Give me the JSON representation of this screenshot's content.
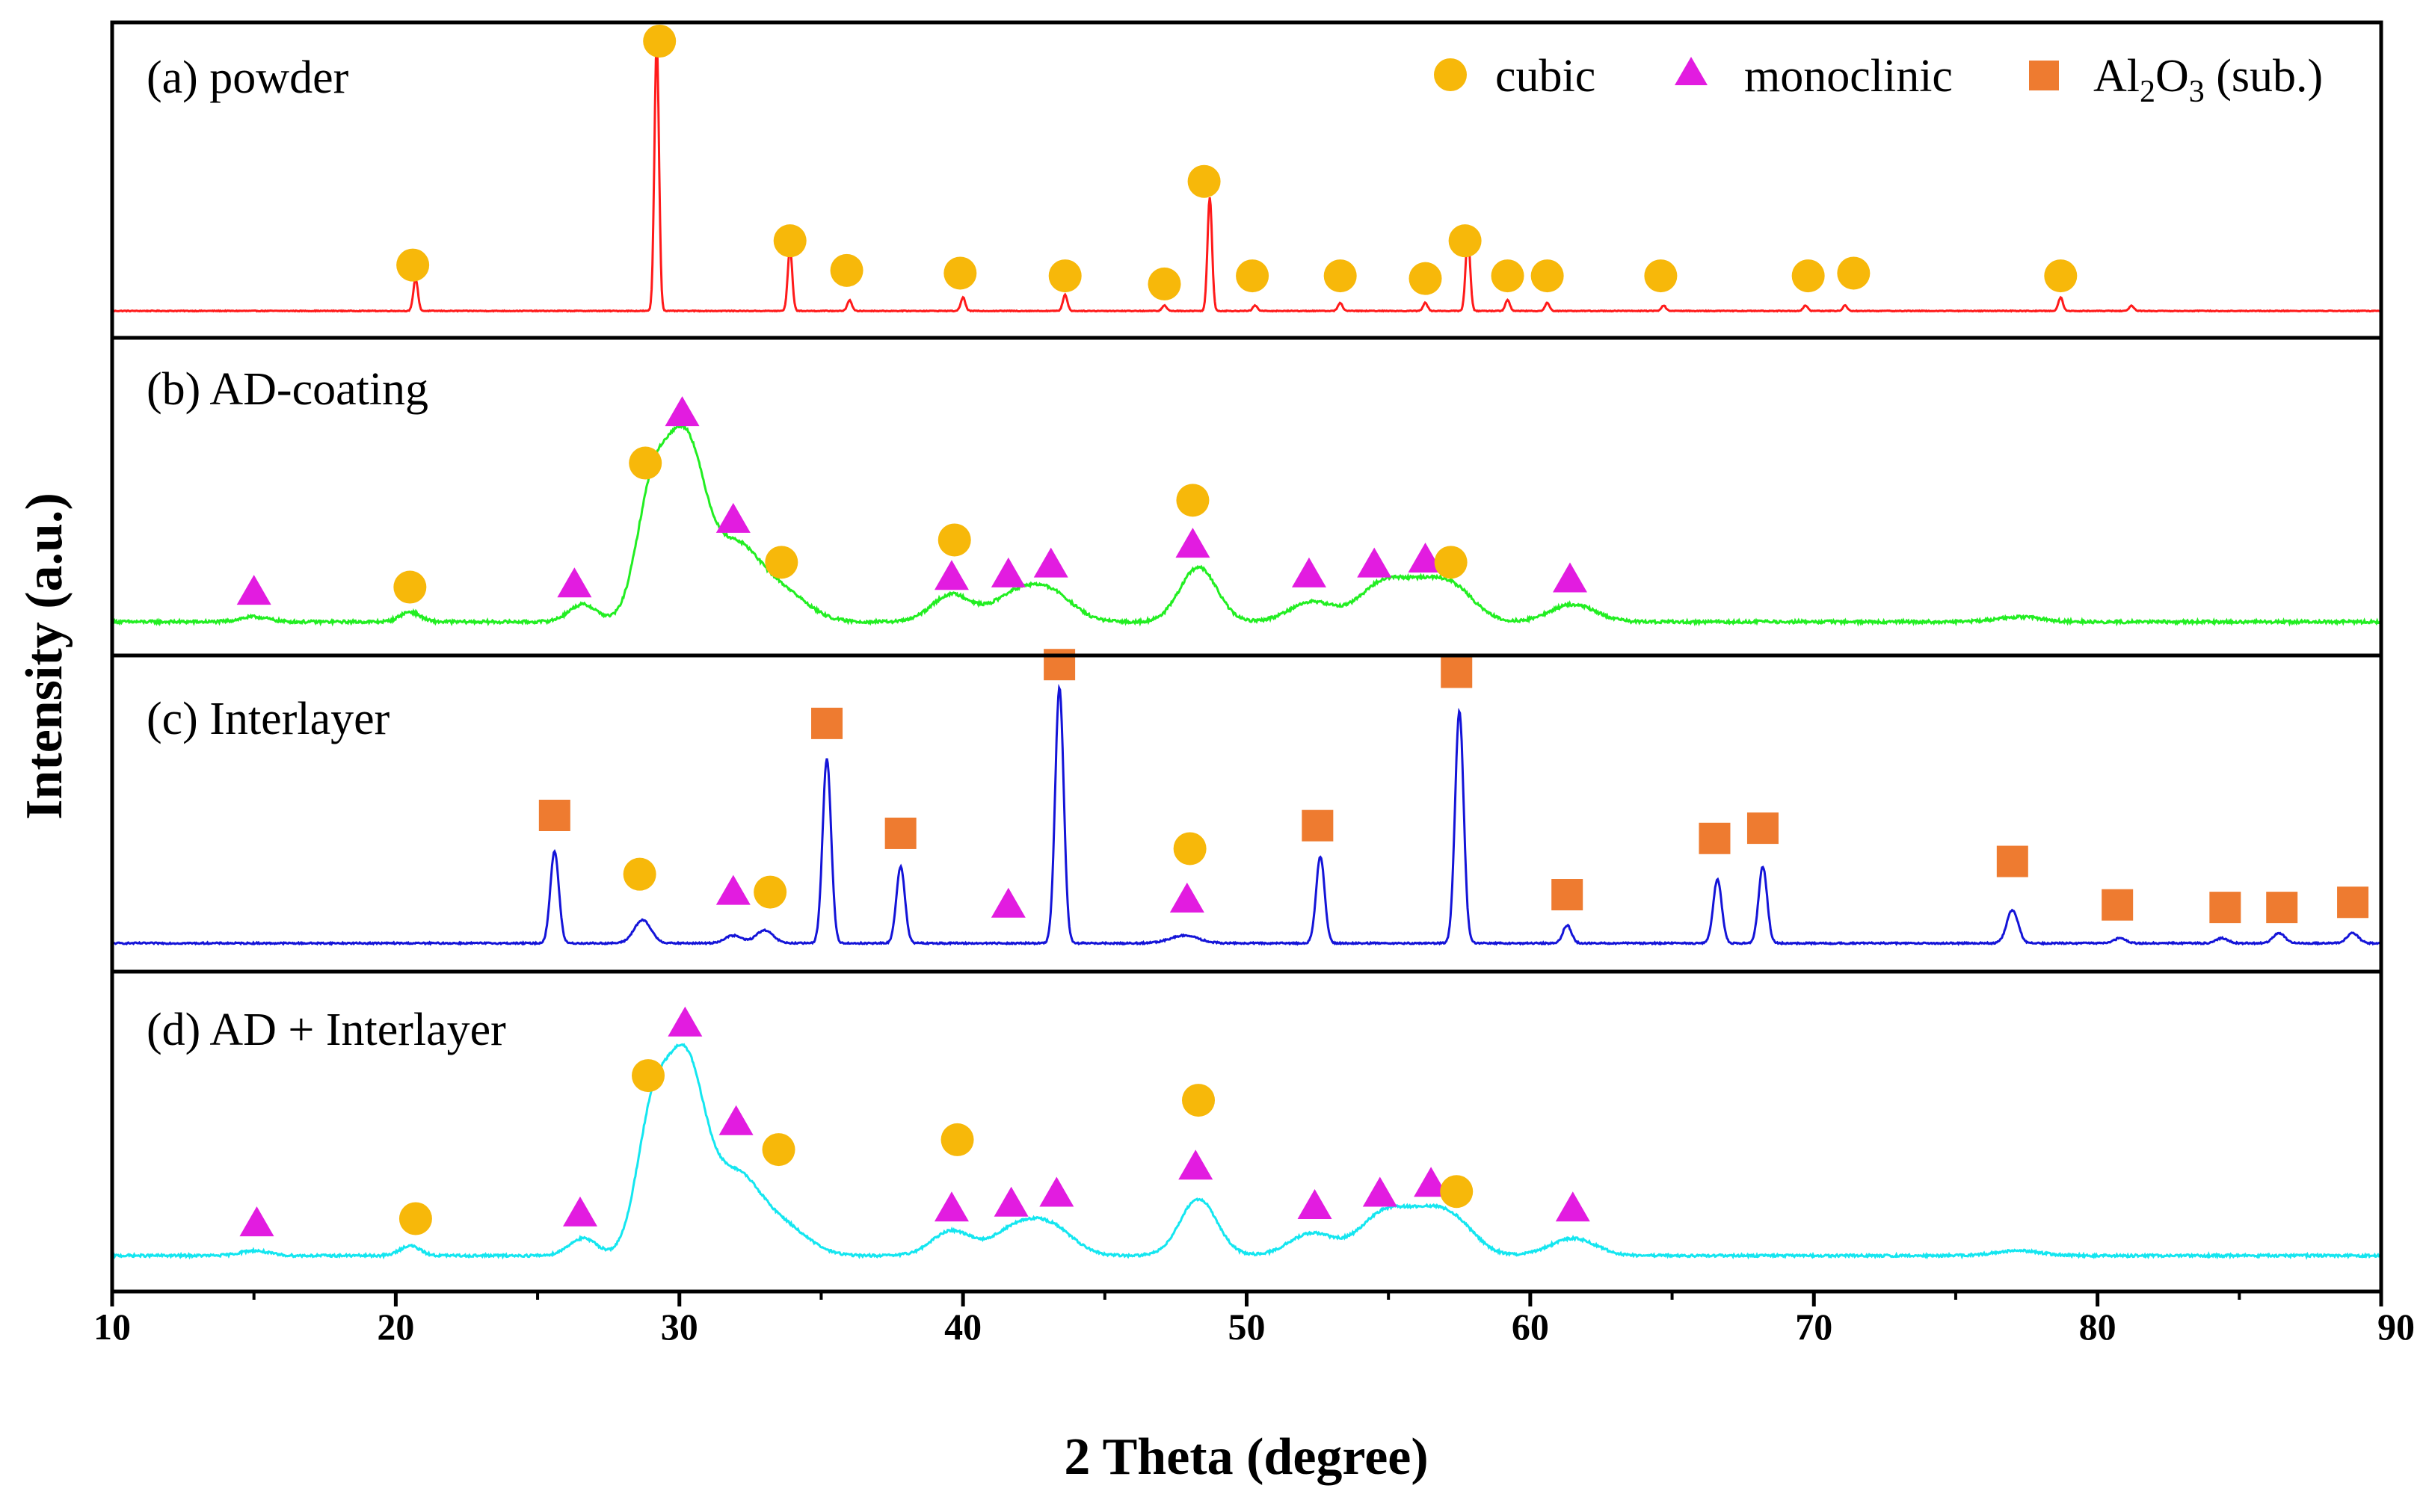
{
  "chart_data": {
    "type": "line",
    "xlabel": "2 Theta (degree)",
    "ylabel": "Intensity (a.u.)",
    "xlim": [
      10,
      90
    ],
    "xticks": [
      "10",
      "20",
      "30",
      "40",
      "50",
      "60",
      "70",
      "80",
      "90"
    ],
    "legend": {
      "placement": "top-right",
      "entries": [
        {
          "marker": "circle",
          "color": "#f7b80a",
          "label": "cubic"
        },
        {
          "marker": "triangle",
          "color": "#e21ce0",
          "label": "monoclinic"
        },
        {
          "marker": "square",
          "color": "#ee7b30",
          "label": "Al2O3 (sub.)",
          "label_parts": {
            "base1": "Al",
            "sub1": "2",
            "base2": "O",
            "sub2": "3",
            "rest": " (sub.)"
          }
        }
      ]
    },
    "marker_colors": {
      "cubic": "#f7b80a",
      "monoclinic": "#e21ce0",
      "al2o3": "#ee7b30"
    },
    "panels": [
      {
        "label": "(a) powder",
        "color": "#ff1a1a",
        "ymax": 1.0,
        "baseline": 0.02,
        "noise": 0.0015,
        "peaks": [
          [
            20.7,
            0.12,
            0.08
          ],
          [
            29.2,
            1.0,
            0.08
          ],
          [
            33.9,
            0.23,
            0.08
          ],
          [
            36.0,
            0.04,
            0.08
          ],
          [
            40.0,
            0.05,
            0.08
          ],
          [
            43.6,
            0.06,
            0.08
          ],
          [
            47.1,
            0.02,
            0.08
          ],
          [
            48.7,
            0.42,
            0.08
          ],
          [
            50.3,
            0.02,
            0.08
          ],
          [
            53.3,
            0.03,
            0.08
          ],
          [
            56.3,
            0.03,
            0.08
          ],
          [
            57.8,
            0.28,
            0.08
          ],
          [
            59.2,
            0.04,
            0.08
          ],
          [
            60.6,
            0.03,
            0.08
          ],
          [
            64.7,
            0.02,
            0.08
          ],
          [
            69.7,
            0.02,
            0.08
          ],
          [
            71.1,
            0.02,
            0.08
          ],
          [
            78.7,
            0.05,
            0.08
          ],
          [
            81.2,
            0.02,
            0.08
          ]
        ],
        "markers": [
          {
            "type": "cubic",
            "x": 20.6,
            "level": 0.17
          },
          {
            "type": "cubic",
            "x": 29.3,
            "level": 1.0
          },
          {
            "type": "cubic",
            "x": 33.9,
            "level": 0.26
          },
          {
            "type": "cubic",
            "x": 35.9,
            "level": 0.15
          },
          {
            "type": "cubic",
            "x": 39.9,
            "level": 0.14
          },
          {
            "type": "cubic",
            "x": 43.6,
            "level": 0.13
          },
          {
            "type": "cubic",
            "x": 47.1,
            "level": 0.1
          },
          {
            "type": "cubic",
            "x": 48.5,
            "level": 0.48
          },
          {
            "type": "cubic",
            "x": 50.2,
            "level": 0.13
          },
          {
            "type": "cubic",
            "x": 53.3,
            "level": 0.13
          },
          {
            "type": "cubic",
            "x": 56.3,
            "level": 0.12
          },
          {
            "type": "cubic",
            "x": 57.7,
            "level": 0.26
          },
          {
            "type": "cubic",
            "x": 59.2,
            "level": 0.13
          },
          {
            "type": "cubic",
            "x": 60.6,
            "level": 0.13
          },
          {
            "type": "cubic",
            "x": 64.6,
            "level": 0.13
          },
          {
            "type": "cubic",
            "x": 69.8,
            "level": 0.13
          },
          {
            "type": "cubic",
            "x": 71.4,
            "level": 0.14
          },
          {
            "type": "cubic",
            "x": 78.7,
            "level": 0.13
          }
        ]
      },
      {
        "label": "(b) AD-coating",
        "color": "#22ee22",
        "ymax": 1.0,
        "baseline": 0.03,
        "noise": 0.006,
        "peaks": [
          [
            15.0,
            0.02,
            0.5
          ],
          [
            20.5,
            0.04,
            0.35
          ],
          [
            26.6,
            0.07,
            0.5
          ],
          [
            29.0,
            0.45,
            0.55
          ],
          [
            30.2,
            0.72,
            0.7
          ],
          [
            32.0,
            0.28,
            0.8
          ],
          [
            33.6,
            0.12,
            0.9
          ],
          [
            39.6,
            0.11,
            0.7
          ],
          [
            41.8,
            0.1,
            0.8
          ],
          [
            43.1,
            0.11,
            0.8
          ],
          [
            48.3,
            0.22,
            0.65
          ],
          [
            52.3,
            0.08,
            0.8
          ],
          [
            54.7,
            0.13,
            0.8
          ],
          [
            56.4,
            0.15,
            1.0
          ],
          [
            57.5,
            0.06,
            0.7
          ],
          [
            61.5,
            0.07,
            0.8
          ],
          [
            77.2,
            0.02,
            0.8
          ]
        ],
        "markers": [
          {
            "type": "mono",
            "x": 15.0,
            "level": 0.12
          },
          {
            "type": "cubic",
            "x": 20.5,
            "level": 0.14
          },
          {
            "type": "mono",
            "x": 26.3,
            "level": 0.15
          },
          {
            "type": "cubic",
            "x": 28.8,
            "level": 0.64
          },
          {
            "type": "mono",
            "x": 30.1,
            "level": 0.84
          },
          {
            "type": "mono",
            "x": 31.9,
            "level": 0.41
          },
          {
            "type": "cubic",
            "x": 33.6,
            "level": 0.24
          },
          {
            "type": "mono",
            "x": 39.6,
            "level": 0.18
          },
          {
            "type": "cubic",
            "x": 39.7,
            "level": 0.33
          },
          {
            "type": "mono",
            "x": 41.6,
            "level": 0.19
          },
          {
            "type": "mono",
            "x": 43.1,
            "level": 0.23
          },
          {
            "type": "mono",
            "x": 48.1,
            "level": 0.31
          },
          {
            "type": "cubic",
            "x": 48.1,
            "level": 0.49
          },
          {
            "type": "mono",
            "x": 52.2,
            "level": 0.19
          },
          {
            "type": "mono",
            "x": 54.5,
            "level": 0.23
          },
          {
            "type": "mono",
            "x": 56.3,
            "level": 0.25
          },
          {
            "type": "cubic",
            "x": 57.2,
            "level": 0.24
          },
          {
            "type": "mono",
            "x": 61.4,
            "level": 0.17
          }
        ]
      },
      {
        "label": "(c) Interlayer",
        "color": "#1414d8",
        "ymax": 1.0,
        "baseline": 0.02,
        "noise": 0.003,
        "peaks": [
          [
            25.6,
            0.36,
            0.15
          ],
          [
            28.7,
            0.09,
            0.3
          ],
          [
            31.9,
            0.03,
            0.3
          ],
          [
            33.0,
            0.05,
            0.3
          ],
          [
            35.2,
            0.72,
            0.15
          ],
          [
            37.8,
            0.3,
            0.15
          ],
          [
            43.4,
            1.0,
            0.15
          ],
          [
            47.8,
            0.03,
            0.5
          ],
          [
            52.6,
            0.34,
            0.15
          ],
          [
            57.5,
            0.91,
            0.15
          ],
          [
            61.3,
            0.07,
            0.15
          ],
          [
            66.6,
            0.25,
            0.15
          ],
          [
            68.2,
            0.3,
            0.15
          ],
          [
            77.0,
            0.13,
            0.2
          ],
          [
            80.8,
            0.02,
            0.2
          ],
          [
            84.4,
            0.02,
            0.2
          ],
          [
            86.4,
            0.04,
            0.2
          ],
          [
            89.0,
            0.04,
            0.2
          ]
        ],
        "markers": [
          {
            "type": "al2o3",
            "x": 25.6,
            "level": 0.5
          },
          {
            "type": "cubic",
            "x": 28.6,
            "level": 0.27
          },
          {
            "type": "mono",
            "x": 31.9,
            "level": 0.2
          },
          {
            "type": "cubic",
            "x": 33.2,
            "level": 0.2
          },
          {
            "type": "al2o3",
            "x": 35.2,
            "level": 0.86
          },
          {
            "type": "al2o3",
            "x": 37.8,
            "level": 0.43
          },
          {
            "type": "mono",
            "x": 41.6,
            "level": 0.15
          },
          {
            "type": "al2o3",
            "x": 43.4,
            "level": 1.09
          },
          {
            "type": "cubic",
            "x": 48.0,
            "level": 0.37
          },
          {
            "type": "mono",
            "x": 47.9,
            "level": 0.17
          },
          {
            "type": "al2o3",
            "x": 52.5,
            "level": 0.46
          },
          {
            "type": "al2o3",
            "x": 57.4,
            "level": 1.06
          },
          {
            "type": "al2o3",
            "x": 61.3,
            "level": 0.19
          },
          {
            "type": "al2o3",
            "x": 66.5,
            "level": 0.41
          },
          {
            "type": "al2o3",
            "x": 68.2,
            "level": 0.45
          },
          {
            "type": "al2o3",
            "x": 77.0,
            "level": 0.32
          },
          {
            "type": "al2o3",
            "x": 80.7,
            "level": 0.15
          },
          {
            "type": "al2o3",
            "x": 84.5,
            "level": 0.14
          },
          {
            "type": "al2o3",
            "x": 86.5,
            "level": 0.14
          },
          {
            "type": "al2o3",
            "x": 89.0,
            "level": 0.16
          }
        ]
      },
      {
        "label": "(d) AD + Interlayer",
        "color": "#14e6f0",
        "ymax": 1.0,
        "baseline": 0.03,
        "noise": 0.005,
        "peaks": [
          [
            15.0,
            0.02,
            0.5
          ],
          [
            20.5,
            0.04,
            0.35
          ],
          [
            26.6,
            0.07,
            0.5
          ],
          [
            29.0,
            0.48,
            0.55
          ],
          [
            30.2,
            0.78,
            0.7
          ],
          [
            32.0,
            0.3,
            0.8
          ],
          [
            33.6,
            0.12,
            0.9
          ],
          [
            39.6,
            0.1,
            0.7
          ],
          [
            41.8,
            0.1,
            0.8
          ],
          [
            43.1,
            0.11,
            0.8
          ],
          [
            48.3,
            0.23,
            0.65
          ],
          [
            52.3,
            0.09,
            0.8
          ],
          [
            54.7,
            0.14,
            0.8
          ],
          [
            56.4,
            0.17,
            1.0
          ],
          [
            57.5,
            0.06,
            0.7
          ],
          [
            61.5,
            0.07,
            0.8
          ],
          [
            77.2,
            0.02,
            0.8
          ]
        ],
        "markers": [
          {
            "type": "mono",
            "x": 15.1,
            "level": 0.13
          },
          {
            "type": "cubic",
            "x": 20.7,
            "level": 0.15
          },
          {
            "type": "mono",
            "x": 26.5,
            "level": 0.17
          },
          {
            "type": "cubic",
            "x": 28.9,
            "level": 0.73
          },
          {
            "type": "mono",
            "x": 30.2,
            "level": 0.94
          },
          {
            "type": "mono",
            "x": 32.0,
            "level": 0.54
          },
          {
            "type": "cubic",
            "x": 33.5,
            "level": 0.43
          },
          {
            "type": "cubic",
            "x": 39.8,
            "level": 0.47
          },
          {
            "type": "mono",
            "x": 39.6,
            "level": 0.19
          },
          {
            "type": "mono",
            "x": 41.7,
            "level": 0.21
          },
          {
            "type": "mono",
            "x": 43.3,
            "level": 0.25
          },
          {
            "type": "cubic",
            "x": 48.3,
            "level": 0.63
          },
          {
            "type": "mono",
            "x": 48.2,
            "level": 0.36
          },
          {
            "type": "mono",
            "x": 52.4,
            "level": 0.2
          },
          {
            "type": "mono",
            "x": 54.7,
            "level": 0.25
          },
          {
            "type": "mono",
            "x": 56.5,
            "level": 0.29
          },
          {
            "type": "cubic",
            "x": 57.4,
            "level": 0.26
          },
          {
            "type": "mono",
            "x": 61.5,
            "level": 0.19
          }
        ]
      }
    ]
  }
}
